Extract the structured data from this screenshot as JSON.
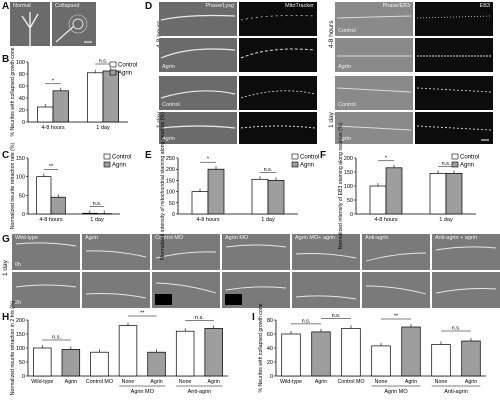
{
  "panels": {
    "A": {
      "label": "A",
      "images": [
        "Normal",
        "Collapsed"
      ]
    },
    "B": {
      "label": "B"
    },
    "C": {
      "label": "C"
    },
    "D": {
      "label": "D",
      "headers": [
        "Phase/Lysg",
        "MitoTracker",
        "Phase/EB3",
        "EB3"
      ],
      "row_labels": [
        "4-8 hours",
        "1 day"
      ],
      "conditions": [
        "Control",
        "Agrin"
      ]
    },
    "E": {
      "label": "E"
    },
    "F": {
      "label": "F"
    },
    "G": {
      "label": "G",
      "side_label": "1 day",
      "rows": [
        "0h",
        "2h"
      ],
      "columns": [
        "Wild-type",
        "Agrin",
        "Control MO",
        "Agrin MO",
        "Agrin MO+ agrin",
        "Anti-agrin",
        "Anti-agrin + agrin"
      ]
    },
    "H": {
      "label": "H"
    },
    "I": {
      "label": "I"
    }
  },
  "chart_data": [
    {
      "id": "B",
      "type": "bar",
      "ylabel": "% Neurites with collapsed growth cone",
      "categories": [
        "4-8 hours",
        "1 day"
      ],
      "legend": [
        "Control",
        "Agrin"
      ],
      "series": [
        {
          "name": "Control",
          "values": [
            25,
            82
          ],
          "color": "#ffffff"
        },
        {
          "name": "Agrin",
          "values": [
            52,
            85
          ],
          "color": "#9e9e9e"
        }
      ],
      "ylim": [
        0,
        100
      ],
      "yticks": [
        0,
        20,
        40,
        60,
        80,
        100
      ],
      "sig": [
        "*",
        "n.s."
      ]
    },
    {
      "id": "C",
      "type": "bar",
      "ylabel": "Normalized neurite retraction rate (%)",
      "categories": [
        "4-8 hours",
        "1 day"
      ],
      "legend": [
        "Control",
        "Agrin"
      ],
      "series": [
        {
          "name": "Control",
          "values": [
            100,
            2
          ],
          "color": "#ffffff"
        },
        {
          "name": "Agrin",
          "values": [
            45,
            1
          ],
          "color": "#9e9e9e"
        }
      ],
      "ylim": [
        0,
        150
      ],
      "yticks": [
        0,
        50,
        100,
        150
      ],
      "sig": [
        "**",
        "n.s."
      ]
    },
    {
      "id": "E",
      "type": "bar",
      "ylabel": "Normalized intensity of mitochondrial staining along neurites (%)",
      "categories": [
        "4-8 hours",
        "1 day"
      ],
      "legend": [
        "Control",
        "Agrin"
      ],
      "series": [
        {
          "name": "Control",
          "values": [
            100,
            155
          ],
          "color": "#ffffff"
        },
        {
          "name": "Agrin",
          "values": [
            200,
            150
          ],
          "color": "#9e9e9e"
        }
      ],
      "ylim": [
        0,
        250
      ],
      "yticks": [
        0,
        50,
        100,
        150,
        200,
        250
      ],
      "sig": [
        "*",
        "n.s."
      ]
    },
    {
      "id": "F",
      "type": "bar",
      "ylabel": "Normalized intensity of EB3 staining along neurites (%)",
      "categories": [
        "4-8 hours",
        "1 day"
      ],
      "legend": [
        "Control",
        "Agrin"
      ],
      "series": [
        {
          "name": "Control",
          "values": [
            100,
            145
          ],
          "color": "#ffffff"
        },
        {
          "name": "Agrin",
          "values": [
            165,
            145
          ],
          "color": "#9e9e9e"
        }
      ],
      "ylim": [
        0,
        200
      ],
      "yticks": [
        0,
        50,
        100,
        150,
        200
      ],
      "sig": [
        "*",
        "n.s."
      ]
    },
    {
      "id": "H",
      "type": "bar",
      "ylabel": "Normalized neurite retraction in 2 hrs (%)",
      "categories": [
        "Wild-type",
        "Agrin",
        "Control MO",
        "None",
        "Agrin",
        "None",
        "Agrin"
      ],
      "groups": [
        {
          "label": "Agrin MO",
          "from": 3,
          "to": 4
        },
        {
          "label": "Anti-agrin",
          "from": 5,
          "to": 6
        }
      ],
      "values": [
        100,
        95,
        85,
        180,
        85,
        160,
        170
      ],
      "colors": [
        "#ffffff",
        "#9e9e9e",
        "#ffffff",
        "#ffffff",
        "#9e9e9e",
        "#ffffff",
        "#9e9e9e"
      ],
      "ylim": [
        0,
        200
      ],
      "yticks": [
        0,
        50,
        100,
        150,
        200
      ],
      "sig": [
        {
          "from": 0,
          "to": 1,
          "text": "n.s."
        },
        {
          "from": 3,
          "to": 4,
          "text": "**"
        },
        {
          "from": 5,
          "to": 6,
          "text": "n.s."
        }
      ]
    },
    {
      "id": "I",
      "type": "bar",
      "ylabel": "% Neurites with collapsed growth cone",
      "categories": [
        "Wild-type",
        "Agrin",
        "Control MO",
        "None",
        "Agrin",
        "None",
        "Agrin"
      ],
      "groups": [
        {
          "label": "Agrin MO",
          "from": 3,
          "to": 4
        },
        {
          "label": "Anti-agrin",
          "from": 5,
          "to": 6
        }
      ],
      "values": [
        60,
        63,
        68,
        43,
        70,
        45,
        50
      ],
      "colors": [
        "#ffffff",
        "#9e9e9e",
        "#ffffff",
        "#ffffff",
        "#9e9e9e",
        "#ffffff",
        "#9e9e9e"
      ],
      "ylim": [
        0,
        80
      ],
      "yticks": [
        0,
        20,
        40,
        60,
        80
      ],
      "sig": [
        {
          "from": 0,
          "to": 1,
          "text": "n.s."
        },
        {
          "from": 1,
          "to": 2,
          "text": "n.s."
        },
        {
          "from": 3,
          "to": 4,
          "text": "**"
        },
        {
          "from": 5,
          "to": 6,
          "text": "n.s."
        }
      ]
    }
  ]
}
